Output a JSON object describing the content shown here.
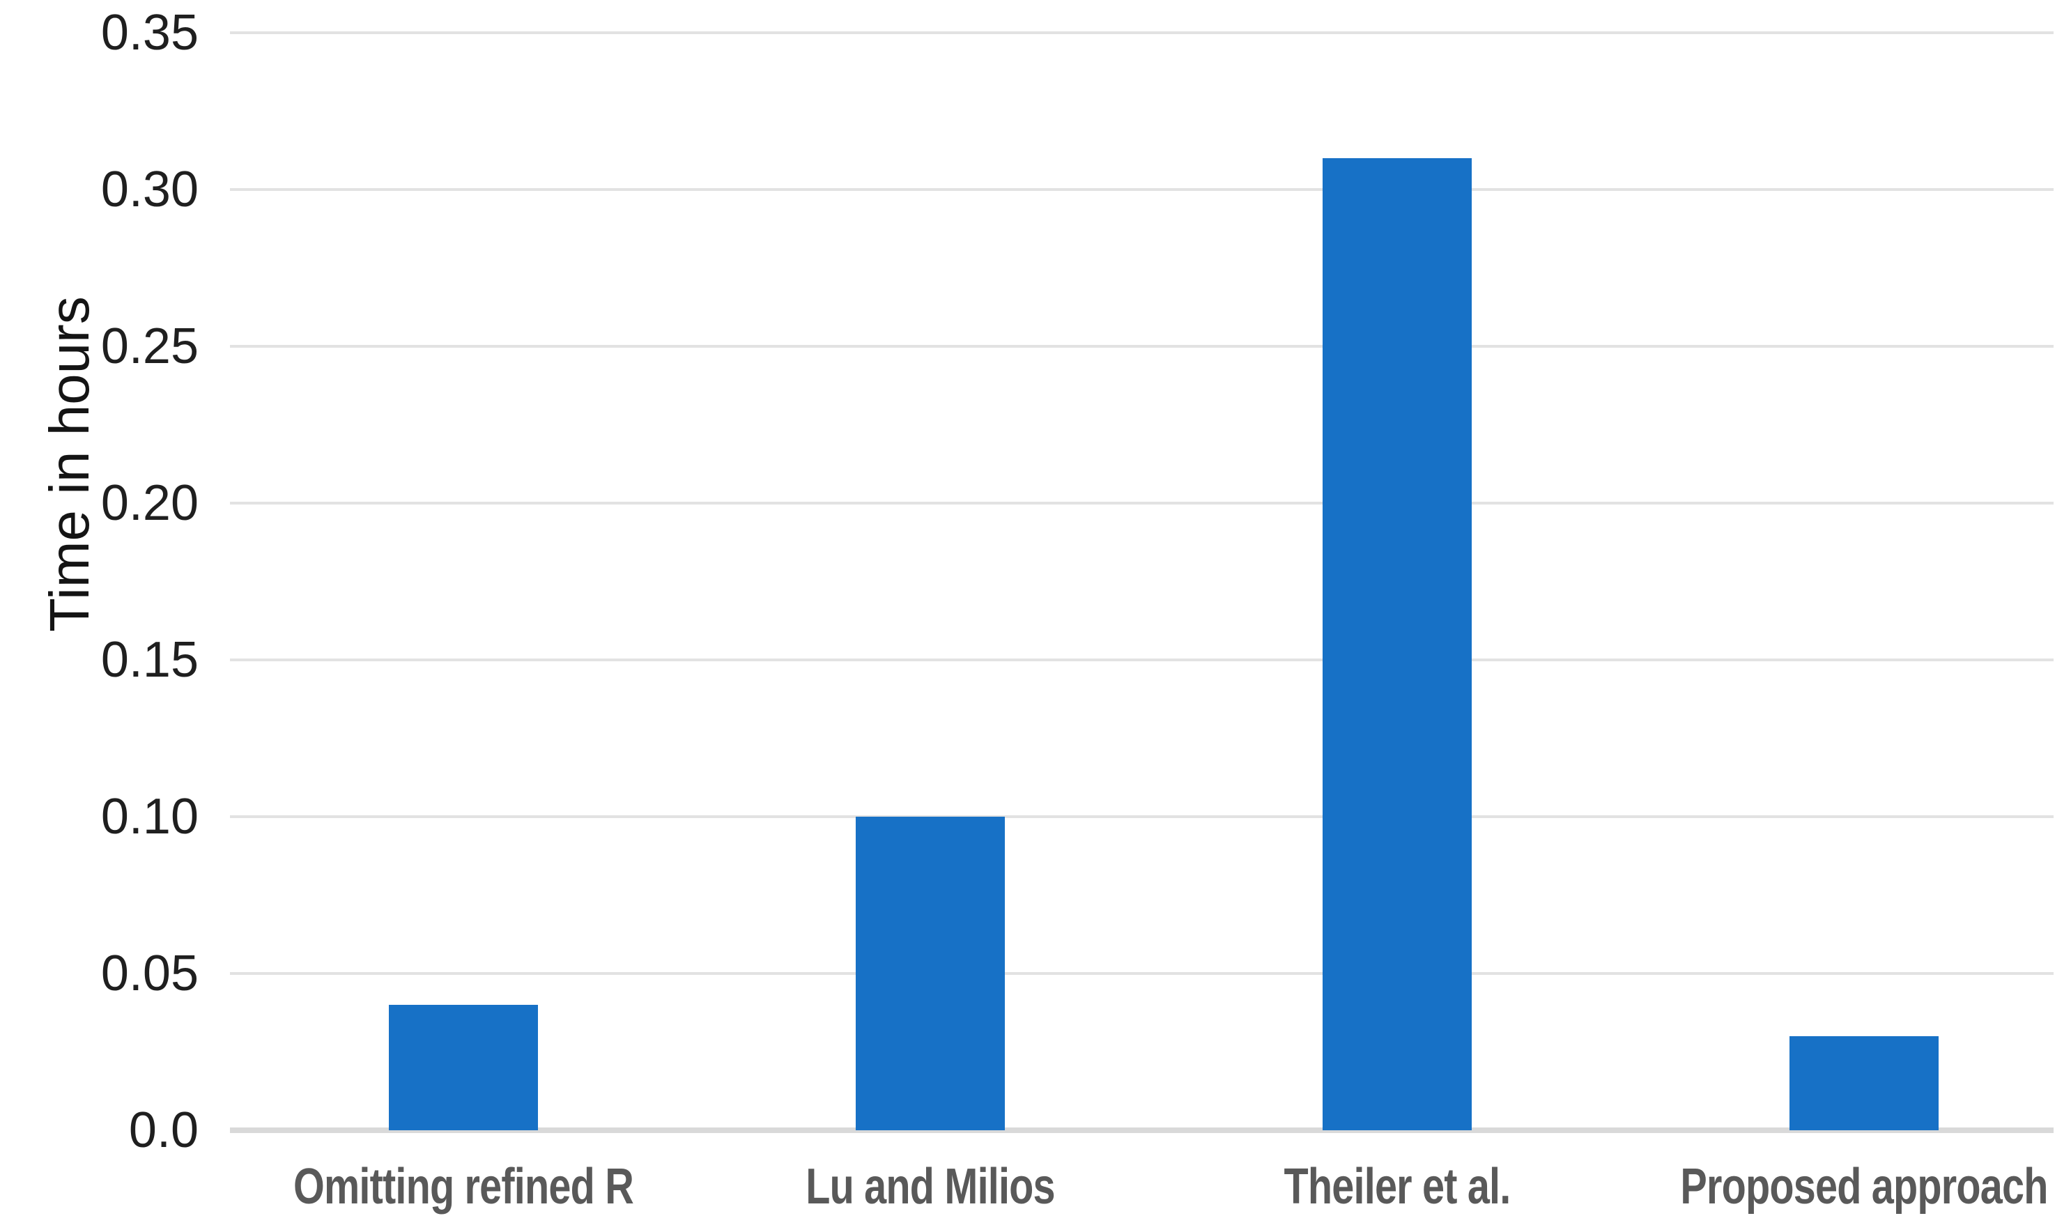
{
  "chart_data": {
    "type": "bar",
    "title": "",
    "categories": [
      "Omitting refined R",
      "Lu and Milios",
      "Theiler et al.",
      "Proposed approach"
    ],
    "values": [
      0.04,
      0.1,
      0.31,
      0.03
    ],
    "xlabel": "",
    "ylabel": "Time in hours",
    "ylim": [
      0,
      0.35
    ],
    "ytick_values": [
      0.35,
      0.3,
      0.25,
      0.2,
      0.15,
      0.1,
      0.05,
      0.0
    ],
    "ytick_labels": [
      "0.35",
      "0.30",
      "0.25",
      "0.20",
      "0.15",
      "0.10",
      "0.05",
      "0.0"
    ],
    "grid": "horizontal-gridlines-on",
    "legend": "none",
    "bar_color": "#1771c6",
    "gridline_color": "#e2e2e2",
    "baseline_color": "#d9d9d9",
    "ytick_color": "#1f1f1f",
    "xtick_color": "#595959",
    "ylabel_color": "#141414",
    "background_color": "#ffffff"
  }
}
